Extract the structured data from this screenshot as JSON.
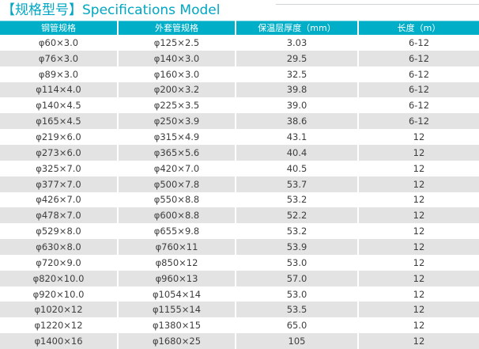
{
  "page": {
    "title": "【规格型号】Specifications Model"
  },
  "colors": {
    "accent": "#00a7c3",
    "header_bg": "#00aec8",
    "stripe": "#e3e3e3",
    "text": "#3e3e3e"
  },
  "table": {
    "headers": [
      "钢管规格",
      "外套管规格",
      "保温层厚度（mm）",
      "长度（m）"
    ],
    "rows": [
      [
        "φ60×3.0",
        "φ125×2.5",
        "3.03",
        "6-12"
      ],
      [
        "φ76×3.0",
        "φ140×3.0",
        "29.5",
        "6-12"
      ],
      [
        "φ89×3.0",
        "φ160×3.0",
        "32.5",
        "6-12"
      ],
      [
        "φ114×4.0",
        "φ200×3.2",
        "39.8",
        "6-12"
      ],
      [
        "φ140×4.5",
        "φ225×3.5",
        "39.0",
        "6-12"
      ],
      [
        "φ165×4.5",
        "φ250×3.9",
        "38.6",
        "6-12"
      ],
      [
        "φ219×6.0",
        "φ315×4.9",
        "43.1",
        "12"
      ],
      [
        "φ273×6.0",
        "φ365×5.6",
        "40.4",
        "12"
      ],
      [
        "φ325×7.0",
        "φ420×7.0",
        "40.5",
        "12"
      ],
      [
        "φ377×7.0",
        "φ500×7.8",
        "53.7",
        "12"
      ],
      [
        "φ426×7.0",
        "φ550×8.8",
        "53.2",
        "12"
      ],
      [
        "φ478×7.0",
        "φ600×8.8",
        "52.2",
        "12"
      ],
      [
        "φ529×8.0",
        "φ655×9.8",
        "53.2",
        "12"
      ],
      [
        "φ630×8.0",
        "φ760×11",
        "53.9",
        "12"
      ],
      [
        "φ720×9.0",
        "φ850×12",
        "53.0",
        "12"
      ],
      [
        "φ820×10.0",
        "φ960×13",
        "57.0",
        "12"
      ],
      [
        "φ920×10.0",
        "φ1054×14",
        "53.0",
        "12"
      ],
      [
        "φ1020×12",
        "φ1155×14",
        "53.5",
        "12"
      ],
      [
        "φ1220×12",
        "φ1380×15",
        "65.0",
        "12"
      ],
      [
        "φ1400×16",
        "φ1680×25",
        "105",
        "12"
      ]
    ]
  }
}
